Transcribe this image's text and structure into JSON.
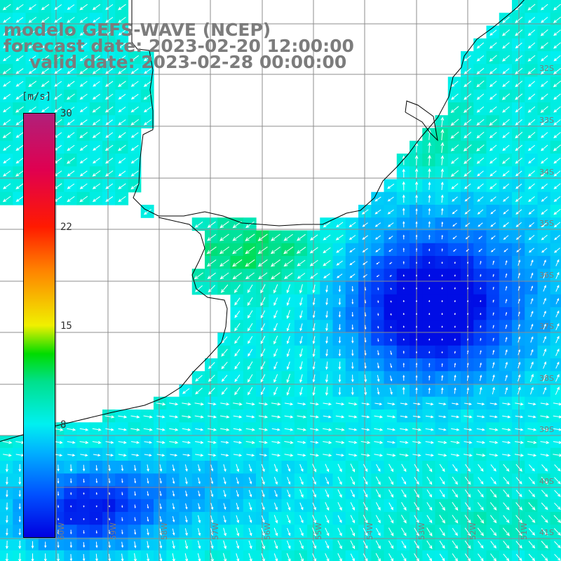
{
  "title": {
    "line1": "modelo GEFS-WAVE (NCEP)",
    "line2": "forecast date: 2023-02-20 12:00:00",
    "line3": "valid date: 2023-02-28 00:00:00"
  },
  "colorbar": {
    "unit": "[m/s]",
    "min": 0,
    "max": 30,
    "ticks": [
      {
        "label": "30",
        "value": 30
      },
      {
        "label": "22",
        "value": 22
      },
      {
        "label": "15",
        "value": 15
      },
      {
        "label": "8",
        "value": 8
      }
    ],
    "stops": [
      {
        "value": 0,
        "color": "#0000e0"
      },
      {
        "value": 3,
        "color": "#0050ff"
      },
      {
        "value": 6,
        "color": "#00b0ff"
      },
      {
        "value": 8,
        "color": "#00f0f0"
      },
      {
        "value": 11,
        "color": "#00e08c"
      },
      {
        "value": 13,
        "color": "#00dc00"
      },
      {
        "value": 15,
        "color": "#f0f000"
      },
      {
        "value": 19,
        "color": "#ff8000"
      },
      {
        "value": 22,
        "color": "#ff1a00"
      },
      {
        "value": 26,
        "color": "#e00050"
      },
      {
        "value": 30,
        "color": "#b0207a"
      }
    ]
  },
  "map": {
    "lat_labels": [
      "32S",
      "33S",
      "34S",
      "35S",
      "36S",
      "37S",
      "38S",
      "39S",
      "40S",
      "41S"
    ],
    "lon_labels": [
      "60W",
      "59W",
      "58W",
      "57W",
      "56W",
      "55W",
      "54W",
      "53W",
      "52W",
      "51W"
    ],
    "colors": {
      "land": "#ffffff",
      "grid": "#8c8c8c",
      "coast": "#000000",
      "arrow": "#ffffff"
    }
  }
}
